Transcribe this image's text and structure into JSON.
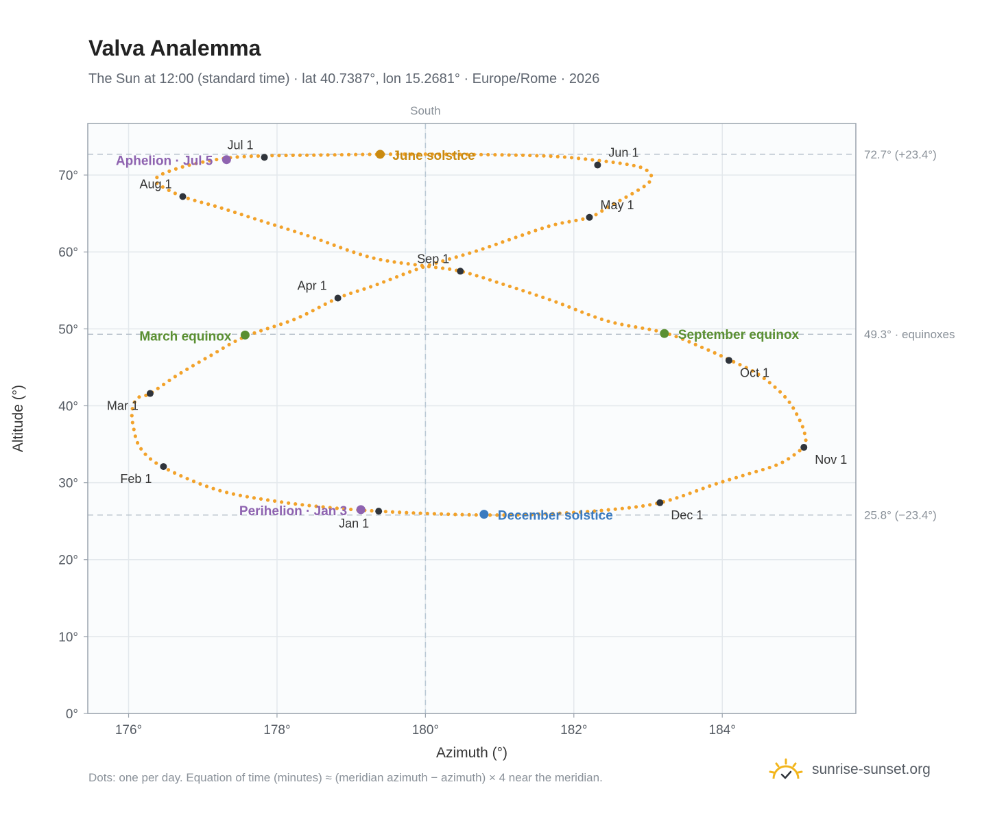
{
  "header": {
    "title": "Valva Analemma",
    "subtitle": "The Sun at 12:00 (standard time) · lat 40.7387°, lon 15.2681° · Europe/Rome · 2026"
  },
  "footer": {
    "note": "Dots: one per day. Equation of time (minutes) ≈ (meridian azimuth − azimuth) × 4 near the meridian.",
    "brand": "sunrise-sunset.org"
  },
  "colors": {
    "path": "#f2a22a",
    "month_marker": "#2f343b",
    "june_solstice": "#c98a10",
    "december_solstice": "#3a7abf",
    "equinox": "#5a8f32",
    "apsis": "#8e63b0",
    "brand_icon": "#f2b51c"
  },
  "chart_data": {
    "type": "scatter",
    "title": "Valva Analemma",
    "xlabel": "Azimuth (°)",
    "ylabel": "Altitude (°)",
    "xlim": [
      175.45,
      185.8
    ],
    "ylim": [
      0,
      76.7
    ],
    "xticks": [
      176,
      178,
      180,
      182,
      184
    ],
    "xtick_labels": [
      "176°",
      "178°",
      "180°",
      "182°",
      "184°"
    ],
    "yticks": [
      0,
      10,
      20,
      30,
      40,
      50,
      60,
      70
    ],
    "ytick_labels": [
      "0°",
      "10°",
      "20°",
      "30°",
      "40°",
      "50°",
      "60°",
      "70°"
    ],
    "grid": true,
    "meridian": {
      "azimuth": 180,
      "label": "South"
    },
    "reference_lines": [
      {
        "altitude": 72.7,
        "label": "72.7° (+23.4°)"
      },
      {
        "altitude": 49.3,
        "label": "49.3° · equinoxes"
      },
      {
        "altitude": 25.8,
        "label": "25.8° (−23.4°)"
      }
    ],
    "path": {
      "x": [
        179.37,
        178.78,
        178.05,
        177.22,
        176.47,
        176.16,
        176.06,
        176.05,
        176.12,
        176.29,
        176.66,
        177.1,
        177.57,
        178.25,
        178.82,
        179.3,
        179.96,
        180.68,
        181.25,
        181.72,
        182.21,
        182.47,
        182.68,
        182.86,
        183.01,
        183.04,
        182.93,
        182.71,
        182.32,
        181.78,
        181.15,
        180.2,
        179.39,
        178.6,
        177.83,
        177.32,
        176.82,
        176.47,
        176.37,
        176.4,
        176.73,
        177.22,
        177.8,
        178.42,
        179.26,
        179.97,
        180.47,
        181.08,
        181.73,
        182.46,
        183.22,
        183.75,
        184.09,
        184.5,
        184.86,
        185.05,
        185.12,
        185.12,
        185.1,
        184.78,
        184.3,
        183.9,
        183.16,
        182.38,
        181.5,
        180.79,
        180.02,
        179.37
      ],
      "y": [
        26.3,
        26.7,
        27.5,
        29.0,
        32.0,
        34.5,
        37.5,
        39.5,
        41.0,
        41.6,
        44.0,
        46.5,
        49.0,
        51.3,
        54.0,
        55.6,
        58.0,
        60.1,
        62.0,
        63.5,
        64.5,
        65.9,
        67.0,
        68.0,
        69.0,
        70.0,
        70.9,
        71.4,
        71.9,
        72.4,
        72.6,
        72.7,
        72.7,
        72.6,
        72.5,
        72.2,
        71.3,
        70.2,
        69.5,
        68.8,
        67.2,
        65.8,
        64.0,
        62.1,
        59.3,
        58.2,
        57.5,
        55.7,
        53.6,
        51.0,
        49.5,
        47.5,
        46.0,
        44.0,
        41.0,
        38.0,
        36.0,
        35.0,
        34.6,
        32.5,
        31.0,
        29.8,
        27.4,
        26.4,
        25.9,
        25.8,
        26.0,
        26.3
      ]
    },
    "months": [
      {
        "label": "Jan 1",
        "x": 179.37,
        "y": 26.3
      },
      {
        "label": "Feb 1",
        "x": 176.47,
        "y": 32.1
      },
      {
        "label": "Mar 1",
        "x": 176.29,
        "y": 41.6
      },
      {
        "label": "Apr 1",
        "x": 178.82,
        "y": 54.0
      },
      {
        "label": "May 1",
        "x": 182.21,
        "y": 64.5
      },
      {
        "label": "Jun 1",
        "x": 182.32,
        "y": 71.3
      },
      {
        "label": "Jul 1",
        "x": 177.83,
        "y": 72.3
      },
      {
        "label": "Aug 1",
        "x": 176.73,
        "y": 67.2
      },
      {
        "label": "Sep 1",
        "x": 180.47,
        "y": 57.5
      },
      {
        "label": "Oct 1",
        "x": 184.09,
        "y": 45.9
      },
      {
        "label": "Nov 1",
        "x": 185.1,
        "y": 34.6
      },
      {
        "label": "Dec 1",
        "x": 183.16,
        "y": 27.4
      }
    ],
    "events": [
      {
        "label": "June solstice",
        "x": 179.39,
        "y": 72.7
      },
      {
        "label": "December solstice",
        "x": 180.79,
        "y": 25.9
      },
      {
        "label": "March equinox",
        "x": 177.57,
        "y": 49.2
      },
      {
        "label": "September equinox",
        "x": 183.22,
        "y": 49.4
      },
      {
        "label": "Aphelion · Jul 5",
        "x": 177.32,
        "y": 72.0
      },
      {
        "label": "Perihelion · Jan 3",
        "x": 179.13,
        "y": 26.5
      }
    ]
  }
}
